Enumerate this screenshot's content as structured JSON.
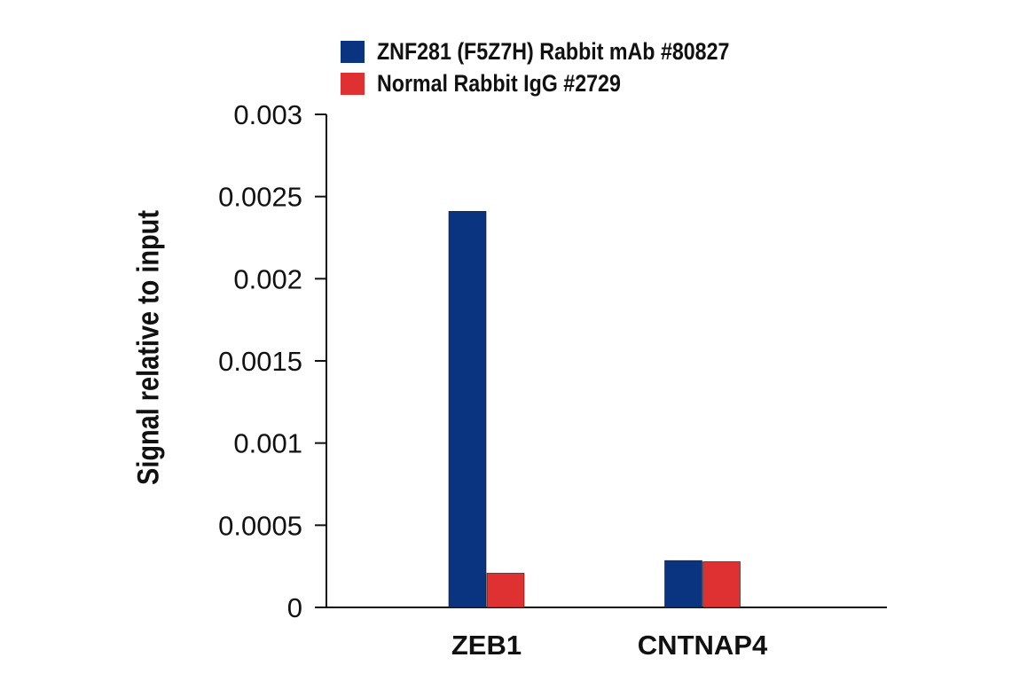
{
  "chart_data": {
    "type": "bar",
    "title": "",
    "xlabel": "",
    "ylabel": "Signal relative to input",
    "categories": [
      "ZEB1",
      "CNTNAP4"
    ],
    "series": [
      {
        "name": "ZNF281 (F5Z7H) Rabbit mAb #80827",
        "color": "#0a3480",
        "values": [
          0.00241,
          0.000285
        ]
      },
      {
        "name": "Normal Rabbit IgG #2729",
        "color": "#e03132",
        "values": [
          0.000208,
          0.000278
        ]
      }
    ],
    "ylim": [
      0,
      0.003
    ],
    "yticks": [
      "0",
      "0.0005",
      "0.001",
      "0.0015",
      "0.002",
      "0.0025",
      "0.003"
    ],
    "ytick_values": [
      0,
      0.0005,
      0.001,
      0.0015,
      0.002,
      0.0025,
      0.003
    ],
    "grid": false,
    "legend_position": "top"
  }
}
